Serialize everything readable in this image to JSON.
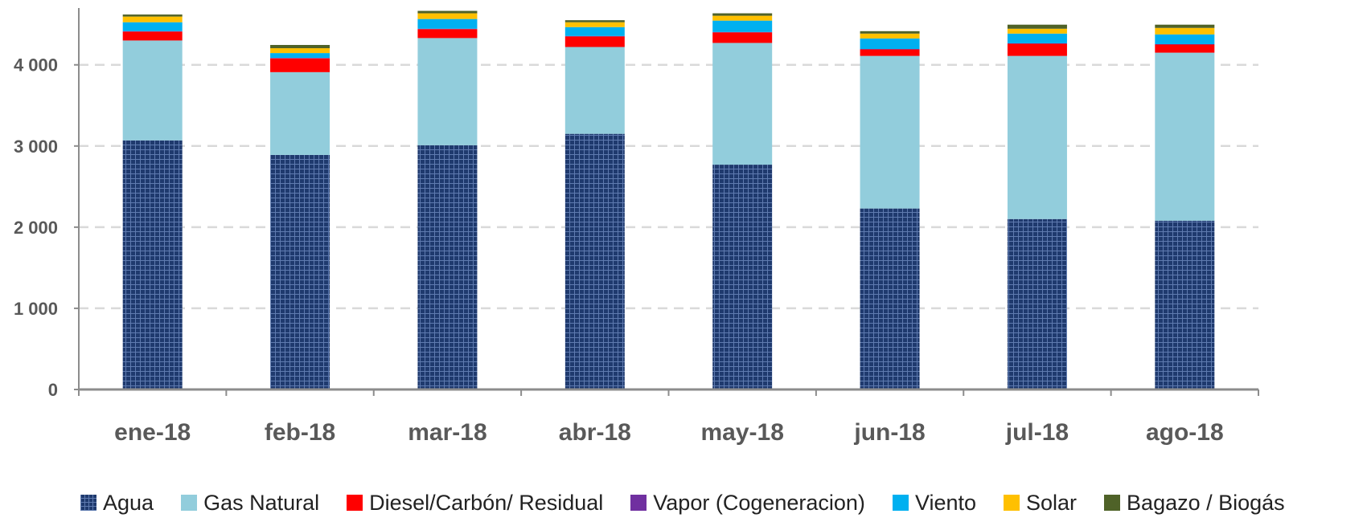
{
  "chart_data": {
    "type": "bar",
    "stacked": true,
    "title": "",
    "xlabel": "",
    "ylabel": "",
    "ylim": [
      0,
      4700
    ],
    "y_ticks": [
      0,
      1000,
      2000,
      3000,
      4000
    ],
    "y_tick_labels": [
      "0",
      "1 000",
      "2 000",
      "3 000",
      "4 000"
    ],
    "grid": "horizontal dashed",
    "legend_position": "bottom",
    "categories": [
      "ene-18",
      "feb-18",
      "mar-18",
      "abr-18",
      "may-18",
      "jun-18",
      "jul-18",
      "ago-18"
    ],
    "series": [
      {
        "name": "Agua",
        "color": "#1f3a6e",
        "pattern": "grid",
        "values": [
          3070,
          2890,
          3010,
          3150,
          2770,
          2230,
          2100,
          2080
        ]
      },
      {
        "name": "Gas Natural",
        "color": "#92cddc",
        "values": [
          1230,
          1020,
          1320,
          1070,
          1500,
          1880,
          2010,
          2070
        ]
      },
      {
        "name": "Diesel/Carbón/ Residual",
        "color": "#ff0000",
        "values": [
          110,
          170,
          110,
          130,
          130,
          80,
          150,
          100
        ]
      },
      {
        "name": "Vapor (Cogeneracion)",
        "color": "#7030a0",
        "values": [
          5,
          5,
          5,
          5,
          5,
          5,
          5,
          5
        ]
      },
      {
        "name": "Viento",
        "color": "#00b0f0",
        "values": [
          110,
          60,
          120,
          110,
          140,
          130,
          120,
          120
        ]
      },
      {
        "name": "Solar",
        "color": "#ffc000",
        "values": [
          70,
          60,
          70,
          60,
          60,
          60,
          60,
          80
        ]
      },
      {
        "name": "Bagazo / Biogás",
        "color": "#4f6228",
        "values": [
          25,
          40,
          30,
          25,
          30,
          30,
          50,
          40
        ]
      }
    ]
  }
}
